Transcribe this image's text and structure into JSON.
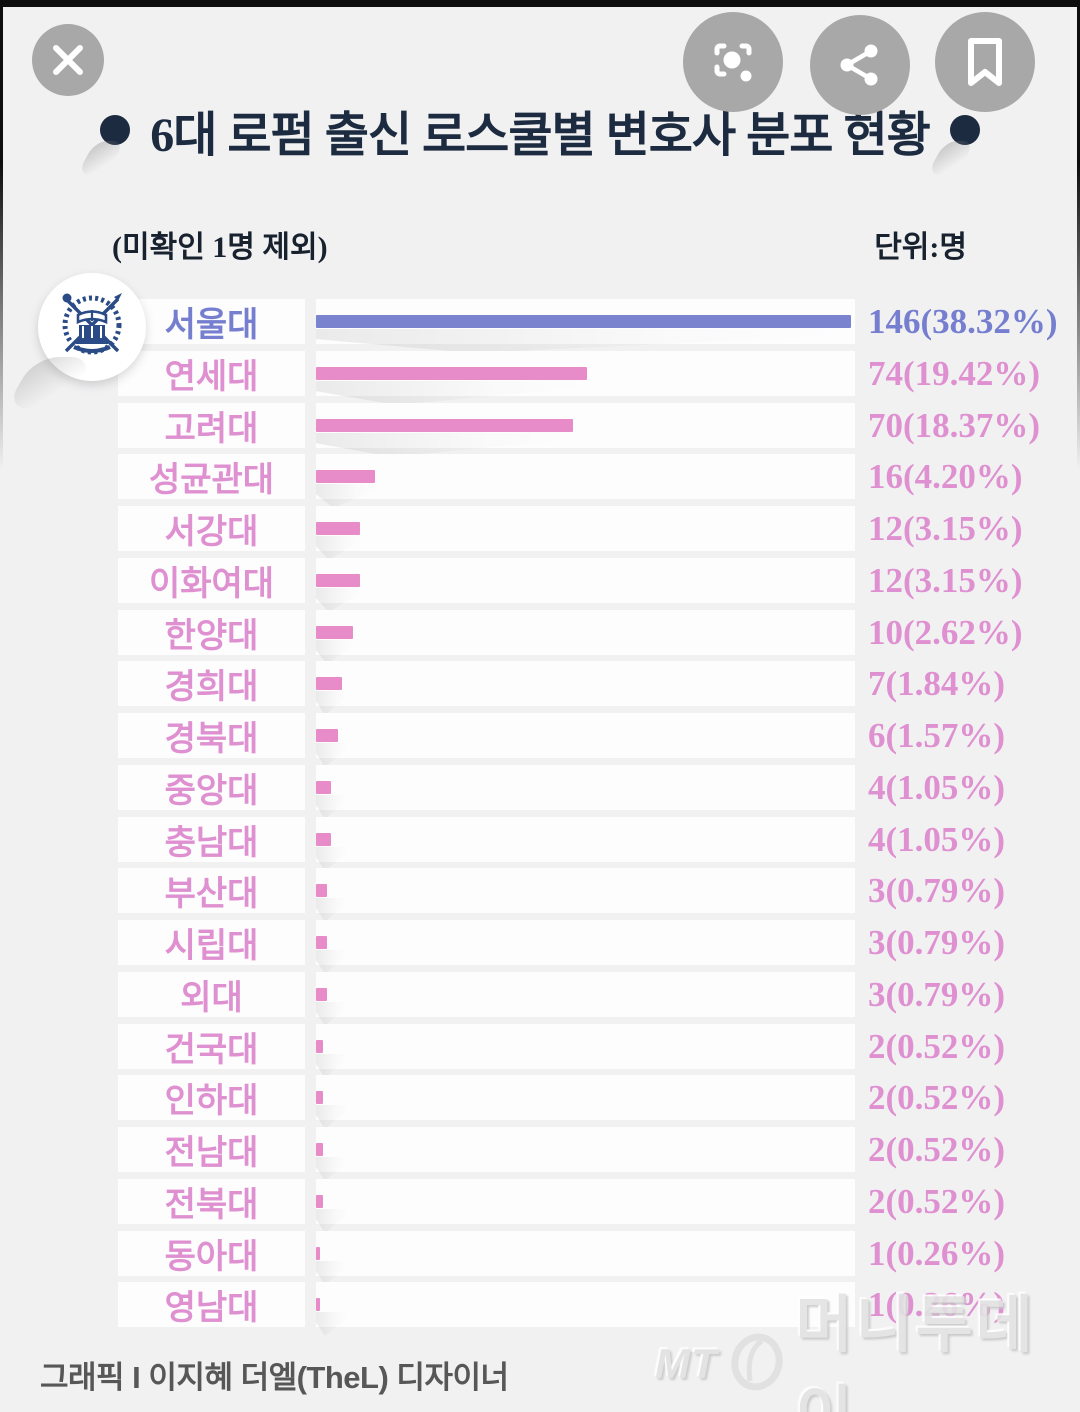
{
  "colors": {
    "navy": "#1c2b40",
    "blue_bar": "#7a83cd",
    "blue_text": "#767ecf",
    "pink_bar": "#e78bc9",
    "pink_text": "#df90d0"
  },
  "viewer": {
    "close_icon": "close-icon",
    "lens_icon": "lens-search-icon",
    "share_icon": "share-icon",
    "bookmark_icon": "bookmark-icon"
  },
  "header": {
    "title_strong": "6대 로펌",
    "title_rest": " 출신 로스쿨별 변호사 분포 현황"
  },
  "subtitle": {
    "note": "(미확인 1명 제외)",
    "unit": "단위:명"
  },
  "chart_data": {
    "type": "bar",
    "orientation": "horizontal",
    "title": "6대 로펌 출신 로스쿨별 변호사 분포 현황",
    "note": "(미확인 1명 제외)",
    "unit_label": "단위:명",
    "max_value": 146,
    "total_percent_base": 381,
    "highlight_index": 0,
    "categories": [
      "서울대",
      "연세대",
      "고려대",
      "성균관대",
      "서강대",
      "이화여대",
      "한양대",
      "경희대",
      "경북대",
      "중앙대",
      "충남대",
      "부산대",
      "시립대",
      "외대",
      "건국대",
      "인하대",
      "전남대",
      "전북대",
      "동아대",
      "영남대"
    ],
    "values": [
      146,
      74,
      70,
      16,
      12,
      12,
      10,
      7,
      6,
      4,
      4,
      3,
      3,
      3,
      2,
      2,
      2,
      2,
      1,
      1
    ],
    "value_labels": [
      "146(38.32%)",
      "74(19.42%)",
      "70(18.37%)",
      "16(4.20%)",
      "12(3.15%)",
      "12(3.15%)",
      "10(2.62%)",
      "7(1.84%)",
      "6(1.57%)",
      "4(1.05%)",
      "4(1.05%)",
      "3(0.79%)",
      "3(0.79%)",
      "3(0.79%)",
      "2(0.52%)",
      "2(0.52%)",
      "2(0.52%)",
      "2(0.52%)",
      "1(0.26%)",
      "1(0.26%)"
    ],
    "legend": [],
    "grid": false,
    "emblem": "seoul-national-university-seal"
  },
  "footer": {
    "credit": "그래픽 I 이지혜 더엘(TheL) 디자이너",
    "watermark_mt": "MT",
    "watermark_name": "머니투데이"
  }
}
